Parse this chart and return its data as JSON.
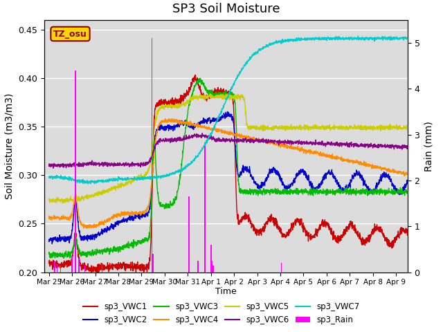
{
  "title": "SP3 Soil Moisture",
  "ylabel_left": "Soil Moisture (m3/m3)",
  "ylabel_right": "Rain (mm)",
  "xlabel": "Time",
  "ylim_left": [
    0.2,
    0.46
  ],
  "ylim_right": [
    0.0,
    5.5
  ],
  "x_tick_labels": [
    "Mar 25",
    "Mar 26",
    "Mar 27",
    "Mar 28",
    "Mar 29",
    "Mar 30",
    "Mar 31",
    "Apr 1",
    "Apr 2",
    "Apr 3",
    "Apr 4",
    "Apr 5",
    "Apr 6",
    "Apr 7",
    "Apr 8",
    "Apr 9"
  ],
  "annotation_text": "TZ_osu",
  "annotation_color": "#8B0000",
  "annotation_bg": "#FFD700",
  "background_color": "#DCDCDC",
  "grid_color": "white",
  "colors": {
    "VWC1": "#CC0000",
    "VWC2": "#0000CC",
    "VWC3": "#00BB00",
    "VWC4": "#FF8C00",
    "VWC5": "#CCCC00",
    "VWC6": "#880088",
    "VWC7": "#00CCCC",
    "Rain": "#FF00FF"
  },
  "legend_labels": [
    "sp3_VWC1",
    "sp3_VWC2",
    "sp3_VWC3",
    "sp3_VWC4",
    "sp3_VWC5",
    "sp3_VWC6",
    "sp3_VWC7",
    "sp3_Rain"
  ],
  "rain_days": [
    0.25,
    0.35,
    0.5,
    1.0,
    1.15,
    1.3,
    1.55,
    2.3,
    4.45,
    4.5,
    6.05,
    6.45,
    6.75,
    7.0,
    7.05,
    7.1,
    10.05
  ],
  "rain_vals": [
    0.25,
    0.18,
    0.15,
    0.35,
    4.4,
    0.3,
    0.15,
    0.2,
    5.1,
    0.4,
    1.65,
    0.25,
    2.75,
    0.6,
    0.25,
    0.15,
    0.2
  ]
}
